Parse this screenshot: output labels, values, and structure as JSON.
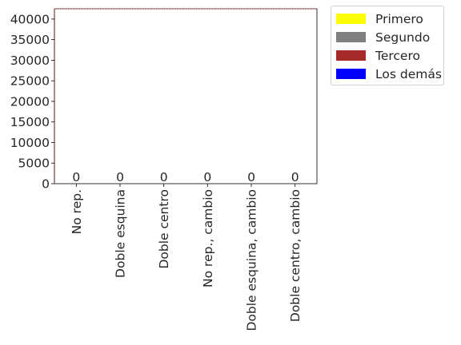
{
  "chart_data": {
    "type": "bar",
    "stacked": true,
    "categories": [
      "No rep.",
      "Doble esquina",
      "Doble centro",
      "No rep., cambio",
      "Doble esquina, cambio",
      "Doble centro, cambio"
    ],
    "series": [
      {
        "name": "Primero",
        "color": "#ffff00",
        "values": [
          0,
          0,
          0,
          0,
          0,
          0
        ]
      },
      {
        "name": "Segundo",
        "color": "#808080",
        "values": [
          0,
          0,
          0,
          0,
          0,
          0
        ]
      },
      {
        "name": "Tercero",
        "color": "#a52a2a",
        "values": [
          0,
          0,
          0,
          0,
          0,
          0
        ]
      },
      {
        "name": "Los demás",
        "color": "#0000ff",
        "values": [
          0,
          0,
          0,
          0,
          0,
          0
        ]
      }
    ],
    "totals": [
      "0",
      "0",
      "0",
      "0",
      "0",
      "0"
    ],
    "yticks": [
      0,
      5000,
      10000,
      15000,
      20000,
      25000,
      30000,
      35000,
      40000
    ],
    "ylim": [
      0,
      42500
    ],
    "title": "",
    "xlabel": "",
    "ylabel": "",
    "legend_position": "outside-top-right",
    "grid": false
  }
}
